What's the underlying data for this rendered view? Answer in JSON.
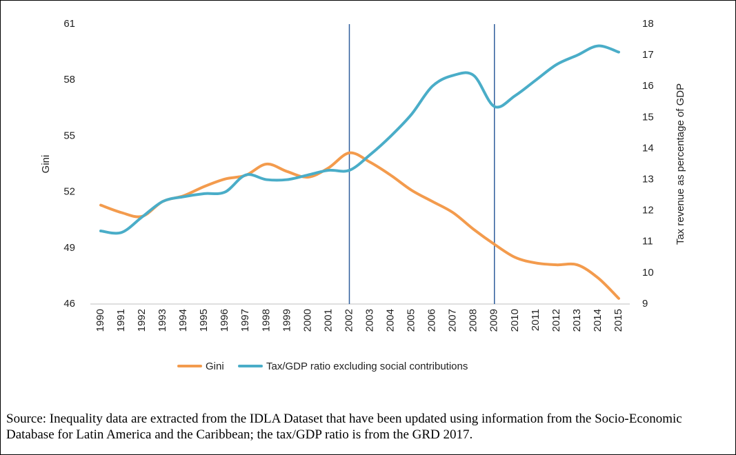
{
  "chart_data": {
    "type": "line",
    "x": [
      1990,
      1991,
      1992,
      1993,
      1994,
      1995,
      1996,
      1997,
      1998,
      1999,
      2000,
      2001,
      2002,
      2003,
      2004,
      2005,
      2006,
      2007,
      2008,
      2009,
      2010,
      2011,
      2012,
      2013,
      2014,
      2015
    ],
    "xlim": [
      1990,
      2015
    ],
    "xticks": [
      1990,
      1991,
      1992,
      1993,
      1994,
      1995,
      1996,
      1997,
      1998,
      1999,
      2000,
      2001,
      2002,
      2003,
      2004,
      2005,
      2006,
      2007,
      2008,
      2009,
      2010,
      2011,
      2012,
      2013,
      2014,
      2015
    ],
    "ylabel": "Gini",
    "y2label": "Tax revenue as percentage of GDP",
    "ylim": [
      46,
      61
    ],
    "yticks": [
      46,
      49,
      52,
      55,
      58,
      61
    ],
    "y2lim": [
      9,
      18
    ],
    "y2ticks": [
      9,
      10,
      11,
      12,
      13,
      14,
      15,
      16,
      17,
      18
    ],
    "reference_lines_x": [
      2002,
      2009
    ],
    "reference_line_color": "#2e5d9c",
    "series": [
      {
        "name": "Gini",
        "color": "#f39b4d",
        "values": [
          51.3,
          50.9,
          50.7,
          51.5,
          51.8,
          52.3,
          52.7,
          52.9,
          53.5,
          53.1,
          52.8,
          53.3,
          54.1,
          53.6,
          52.9,
          52.1,
          51.5,
          50.9,
          50.0,
          49.2,
          48.5,
          48.2,
          48.1,
          48.1,
          47.4,
          46.3
        ]
      },
      {
        "name": "Tax/GDP ratio excluding social contributions",
        "color": "#4aadc8",
        "axis": "y2",
        "values": [
          11.35,
          11.3,
          11.8,
          12.3,
          12.45,
          12.55,
          12.6,
          13.15,
          13.0,
          13.0,
          13.15,
          13.3,
          13.3,
          13.8,
          14.4,
          15.1,
          16.0,
          16.35,
          16.35,
          15.35,
          15.7,
          16.2,
          16.7,
          17.0,
          17.3,
          17.1
        ]
      }
    ]
  },
  "source": "Source: Inequality data are extracted from the IDLA Dataset that have been updated using information from the Socio-Economic Database for Latin America and the Caribbean; the tax/GDP ratio is from the GRD 2017."
}
